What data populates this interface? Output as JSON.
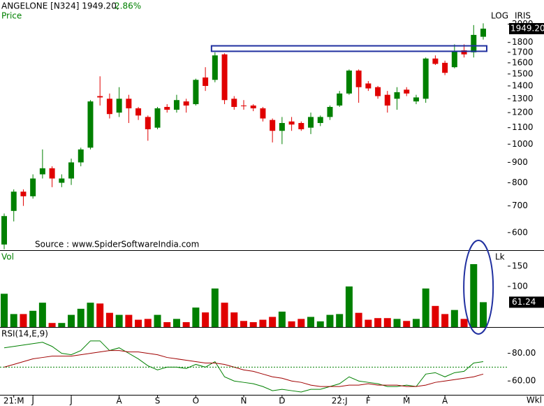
{
  "chart_data": [
    {
      "type": "candlestick",
      "title": "ANGELONE [N324] 1949.20,",
      "change": "2.86%",
      "panel_label": "Price",
      "scale_label": "LOG",
      "brand": "IRIS",
      "log": true,
      "source": "Source : www.SpiderSoftwareIndia.com",
      "up_color": "#008000",
      "down_color": "#e00000",
      "categories": [
        null,
        "21:M",
        null,
        "J",
        null,
        null,
        null,
        "J",
        null,
        null,
        null,
        null,
        "A",
        null,
        null,
        null,
        "S",
        null,
        null,
        null,
        "O",
        null,
        null,
        null,
        null,
        "N",
        null,
        null,
        null,
        "D",
        null,
        null,
        null,
        null,
        null,
        "22:J",
        null,
        null,
        "F",
        null,
        null,
        null,
        "M",
        null,
        null,
        null,
        "A",
        null,
        null,
        null,
        null
      ],
      "open": [
        560,
        680,
        760,
        740,
        840,
        870,
        800,
        820,
        900,
        980,
        1320,
        1300,
        1200,
        1300,
        1230,
        1170,
        1100,
        1240,
        1220,
        1280,
        1260,
        1470,
        1450,
        1680,
        1300,
        1250,
        1250,
        1230,
        1150,
        1080,
        1140,
        1130,
        1100,
        1130,
        1170,
        1250,
        1340,
        1530,
        1420,
        1390,
        1330,
        1300,
        1370,
        1280,
        1300,
        1640,
        1600,
        1560,
        1720,
        1700,
        1860
      ],
      "high": [
        670,
        770,
        770,
        840,
        970,
        880,
        840,
        920,
        980,
        1290,
        1480,
        1340,
        1390,
        1330,
        1240,
        1180,
        1240,
        1260,
        1330,
        1300,
        1460,
        1560,
        1700,
        1690,
        1320,
        1290,
        1260,
        1240,
        1160,
        1170,
        1170,
        1140,
        1200,
        1180,
        1250,
        1360,
        1540,
        1540,
        1440,
        1400,
        1360,
        1390,
        1390,
        1330,
        1650,
        1670,
        1620,
        1780,
        1780,
        1990,
        2010
      ],
      "low": [
        545,
        640,
        700,
        730,
        820,
        780,
        780,
        790,
        880,
        970,
        1250,
        1160,
        1170,
        1130,
        1150,
        1020,
        1090,
        1200,
        1200,
        1200,
        1250,
        1360,
        1430,
        1260,
        1220,
        1220,
        1210,
        1140,
        1010,
        1000,
        1080,
        1080,
        1060,
        1110,
        1150,
        1240,
        1330,
        1270,
        1360,
        1300,
        1200,
        1220,
        1320,
        1260,
        1270,
        1580,
        1490,
        1550,
        1650,
        1650,
        1830
      ],
      "close": [
        660,
        760,
        740,
        820,
        870,
        820,
        820,
        900,
        970,
        1280,
        1310,
        1190,
        1300,
        1230,
        1180,
        1090,
        1230,
        1220,
        1290,
        1250,
        1450,
        1400,
        1670,
        1290,
        1240,
        1245,
        1230,
        1160,
        1080,
        1130,
        1120,
        1090,
        1170,
        1170,
        1240,
        1340,
        1530,
        1390,
        1380,
        1320,
        1250,
        1350,
        1340,
        1310,
        1640,
        1590,
        1510,
        1710,
        1680,
        1880,
        1949.2
      ],
      "last_label": "1949.20",
      "zone": [
        1710,
        1765
      ],
      "zone_color": "#2030a0",
      "ylim": [
        542,
        2300
      ],
      "yticks": [
        600,
        700,
        800,
        900,
        1000,
        1100,
        1200,
        1300,
        1400,
        1500,
        1600,
        1700,
        1800,
        2000
      ],
      "period": "Wkl"
    },
    {
      "type": "bar",
      "panel_label": "Vol",
      "unit": "Lk",
      "values": [
        82,
        32,
        32,
        40,
        60,
        10,
        10,
        30,
        45,
        60,
        58,
        35,
        30,
        30,
        18,
        20,
        30,
        12,
        20,
        12,
        48,
        36,
        95,
        60,
        36,
        15,
        12,
        18,
        25,
        38,
        14,
        20,
        25,
        14,
        30,
        32,
        100,
        35,
        18,
        22,
        22,
        20,
        15,
        20,
        95,
        52,
        32,
        42,
        20,
        155,
        61.24
      ],
      "ylim": [
        0,
        186
      ],
      "yticks": [
        100,
        150
      ],
      "highlight_color": "#2030a0"
    },
    {
      "type": "line",
      "panel_label": "RSI(14,E,9)",
      "series": [
        {
          "color": "#008000",
          "values": [
            84,
            85,
            86,
            87,
            88,
            85,
            80,
            79,
            82,
            89,
            89,
            82,
            84,
            80,
            76,
            71,
            68,
            70,
            70,
            69,
            72,
            70,
            74,
            63,
            60,
            59,
            58,
            56,
            53,
            54,
            53,
            52,
            54,
            54,
            56,
            58,
            63,
            60,
            59,
            58,
            56,
            56,
            57,
            56,
            65,
            66,
            63,
            66,
            67,
            73,
            74
          ]
        },
        {
          "color": "#a00000",
          "values": [
            70,
            72,
            74,
            76,
            77,
            78,
            78,
            78,
            79,
            80,
            81,
            82,
            82,
            81,
            81,
            80,
            79,
            77,
            76,
            75,
            74,
            73,
            73,
            72,
            70,
            68,
            67,
            65,
            63,
            62,
            60,
            59,
            57,
            56,
            56,
            56,
            57,
            57,
            58,
            57,
            57,
            57,
            56,
            56,
            57,
            59,
            60,
            61,
            62,
            63,
            65
          ]
        }
      ],
      "level": 70,
      "level_color": "#008000",
      "ylim": [
        50,
        98
      ],
      "yticks": [
        {
          "value": 80,
          "label": "80.00"
        },
        {
          "value": 60,
          "label": "60.00"
        }
      ]
    }
  ]
}
